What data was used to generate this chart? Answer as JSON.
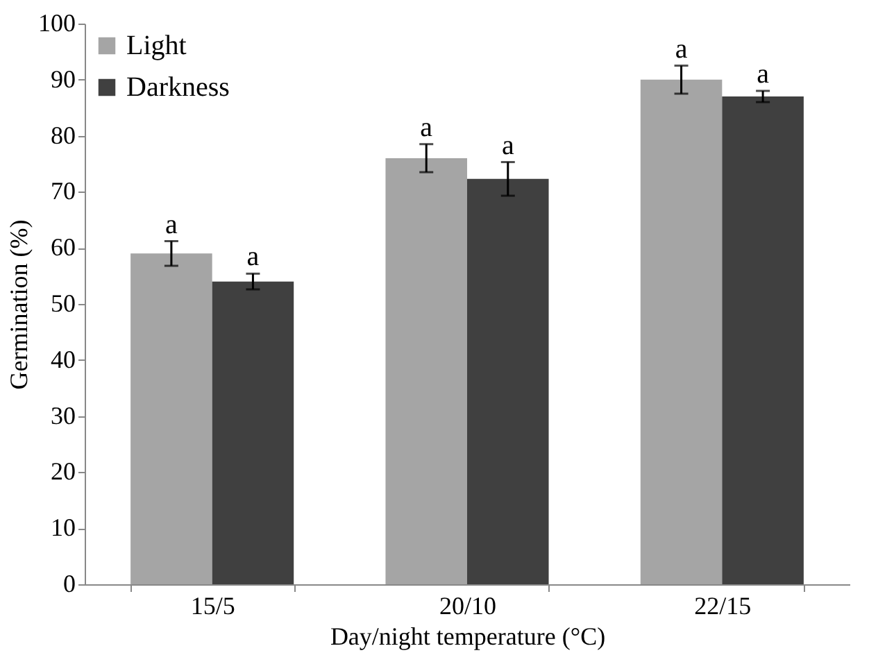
{
  "chart_data": {
    "type": "bar",
    "xlabel": "Day/night temperature (°C)",
    "ylabel": "Germination (%)",
    "categories": [
      "15/5",
      "20/10",
      "22/15"
    ],
    "series": [
      {
        "name": "Light",
        "color": "#a5a5a5",
        "values": [
          59,
          76,
          90
        ],
        "errors": [
          2.2,
          2.5,
          2.5
        ]
      },
      {
        "name": "Darkness",
        "color": "#404040",
        "values": [
          54,
          72.3,
          87
        ],
        "errors": [
          1.4,
          3,
          1
        ]
      }
    ],
    "ylim": [
      0,
      100
    ],
    "yticks": [
      0,
      10,
      20,
      30,
      40,
      50,
      60,
      70,
      80,
      90,
      100
    ],
    "grid": false,
    "legend": "top left",
    "annotations": [
      "a",
      "a",
      "a",
      "a",
      "a",
      "a"
    ]
  }
}
